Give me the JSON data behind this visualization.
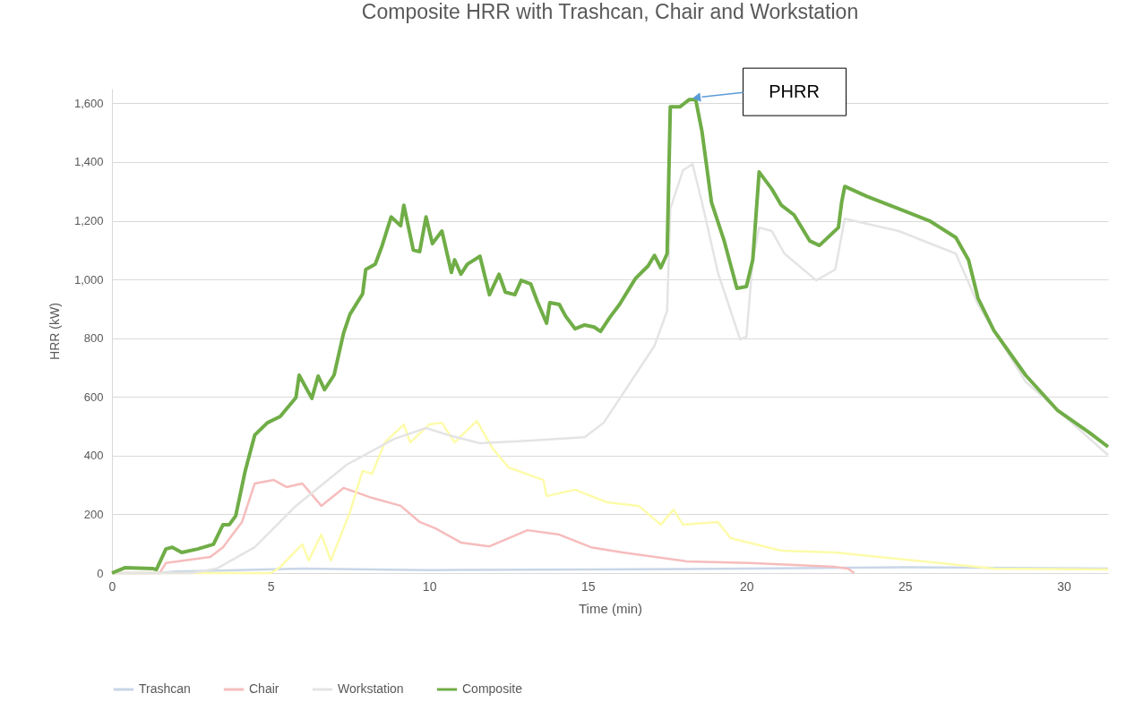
{
  "chart_data": {
    "type": "line",
    "title": "Composite HRR with Trashcan, Chair and Workstation",
    "xlabel": "Time (min)",
    "ylabel": "HRR (kW)",
    "xlim": [
      0,
      31.4
    ],
    "xticks": [
      0,
      5,
      10,
      15,
      20,
      25,
      30
    ],
    "ylim": [
      0,
      1650
    ],
    "yticks": [
      0,
      200,
      400,
      600,
      800,
      {
        "value": 1000,
        "label": "1,000"
      },
      {
        "value": 1200,
        "label": "1,200"
      },
      {
        "value": 1400,
        "label": "1,400"
      },
      {
        "value": 1600,
        "label": "1,600"
      }
    ],
    "grid": "y",
    "legend": "bottom",
    "annotations": [
      "PHRR"
    ],
    "series": [
      {
        "name": "Trashcan",
        "color": "#c9d6e8",
        "x": [
          0,
          1.5,
          2,
          6,
          10,
          15,
          20,
          25,
          31.4
        ],
        "values": [
          0,
          0,
          5,
          15,
          10,
          12,
          15,
          20,
          15
        ]
      },
      {
        "name": "Chair",
        "color": "#f6bcbc",
        "x": [
          0,
          1.5,
          1.7,
          3.1,
          3.5,
          4.1,
          4.5,
          5.1,
          5.5,
          6.0,
          6.6,
          7.3,
          8.2,
          9.1,
          9.7,
          10.2,
          11.0,
          11.9,
          13.1,
          14.1,
          15.1,
          16.1,
          18.1,
          20.1,
          22.8,
          23.2,
          23.4
        ],
        "values": [
          0,
          0,
          34,
          55,
          88,
          174,
          305,
          317,
          293,
          305,
          229,
          290,
          256,
          229,
          174,
          152,
          104,
          91,
          146,
          131,
          88,
          70,
          40,
          34,
          21,
          15,
          0
        ]
      },
      {
        "color": "#fdfbaa",
        "x": [
          0,
          5.0,
          5.3,
          6.0,
          6.2,
          6.6,
          6.9,
          7.5,
          7.9,
          8.2,
          8.6,
          9.2,
          9.4,
          10.0,
          10.4,
          10.8,
          11.5,
          12.0,
          12.5,
          13.6,
          13.7,
          14.6,
          15.6,
          16.6,
          17.3,
          17.7,
          18.0,
          19.1,
          19.5,
          21.1,
          22.8,
          25.8,
          27.8,
          31.4
        ],
        "values": [
          0,
          0,
          20,
          98,
          43,
          131,
          43,
          207,
          348,
          338,
          445,
          506,
          445,
          506,
          512,
          445,
          518,
          424,
          360,
          317,
          262,
          284,
          241,
          229,
          165,
          216,
          165,
          174,
          119,
          76,
          70,
          37,
          15,
          12
        ]
      },
      {
        "name": "Workstation",
        "color": "#e4e4e4",
        "x": [
          0,
          2.5,
          3.3,
          4.5,
          5.8,
          7.4,
          8.9,
          9.9,
          10.6,
          11.6,
          13.1,
          14.9,
          15.5,
          16.1,
          17.1,
          17.5,
          17.6,
          18.0,
          18.3,
          18.6,
          19.1,
          19.8,
          20.0,
          20.2,
          20.4,
          20.8,
          21.2,
          22.2,
          22.8,
          23.1,
          24.8,
          26.6,
          27.3,
          28.8,
          31.4
        ],
        "values": [
          0,
          0,
          15,
          88,
          229,
          369,
          457,
          494,
          470,
          442,
          451,
          463,
          512,
          610,
          774,
          893,
          1241,
          1372,
          1393,
          1262,
          1024,
          796,
          805,
          1067,
          1177,
          1165,
          1088,
          997,
          1034,
          1207,
          1165,
          1088,
          915,
          652,
          402
        ]
      },
      {
        "name": "Composite",
        "color": "#70ad47",
        "x": [
          0,
          0.4,
          1.3,
          1.4,
          1.7,
          1.9,
          2.2,
          2.7,
          3.2,
          3.5,
          3.7,
          3.9,
          4.2,
          4.5,
          4.9,
          5.3,
          5.8,
          5.9,
          6.3,
          6.5,
          6.7,
          7.0,
          7.3,
          7.5,
          7.9,
          8.0,
          8.3,
          8.5,
          8.8,
          9.1,
          9.2,
          9.5,
          9.7,
          9.9,
          10.1,
          10.4,
          10.7,
          10.8,
          11.0,
          11.2,
          11.6,
          11.9,
          12.2,
          12.4,
          12.7,
          12.9,
          13.2,
          13.4,
          13.7,
          13.8,
          14.1,
          14.3,
          14.6,
          14.9,
          15.2,
          15.4,
          15.7,
          16.0,
          16.5,
          16.9,
          17.1,
          17.3,
          17.5,
          17.6,
          17.9,
          18.2,
          18.4,
          18.6,
          18.9,
          19.3,
          19.7,
          20.0,
          20.2,
          20.4,
          20.8,
          21.1,
          21.5,
          22.0,
          22.3,
          22.9,
          23.0,
          23.1,
          23.8,
          24.8,
          25.8,
          26.6,
          27.0,
          27.3,
          27.8,
          28.8,
          29.8,
          30.8,
          31.4
        ],
        "values": [
          0,
          18,
          15,
          12,
          82,
          88,
          70,
          82,
          98,
          165,
          165,
          195,
          348,
          470,
          512,
          533,
          598,
          674,
          595,
          671,
          625,
          674,
          817,
          881,
          951,
          1034,
          1052,
          1110,
          1213,
          1183,
          1253,
          1100,
          1095,
          1213,
          1122,
          1165,
          1024,
          1067,
          1018,
          1052,
          1079,
          948,
          1018,
          957,
          948,
          997,
          985,
          927,
          851,
          921,
          915,
          875,
          832,
          845,
          838,
          823,
          872,
          915,
          1003,
          1046,
          1082,
          1040,
          1088,
          1588,
          1588,
          1613,
          1613,
          1503,
          1262,
          1131,
          970,
          976,
          1067,
          1366,
          1308,
          1253,
          1220,
          1131,
          1116,
          1177,
          1262,
          1317,
          1283,
          1241,
          1198,
          1143,
          1067,
          936,
          826,
          674,
          555,
          479,
          430
        ]
      }
    ]
  }
}
